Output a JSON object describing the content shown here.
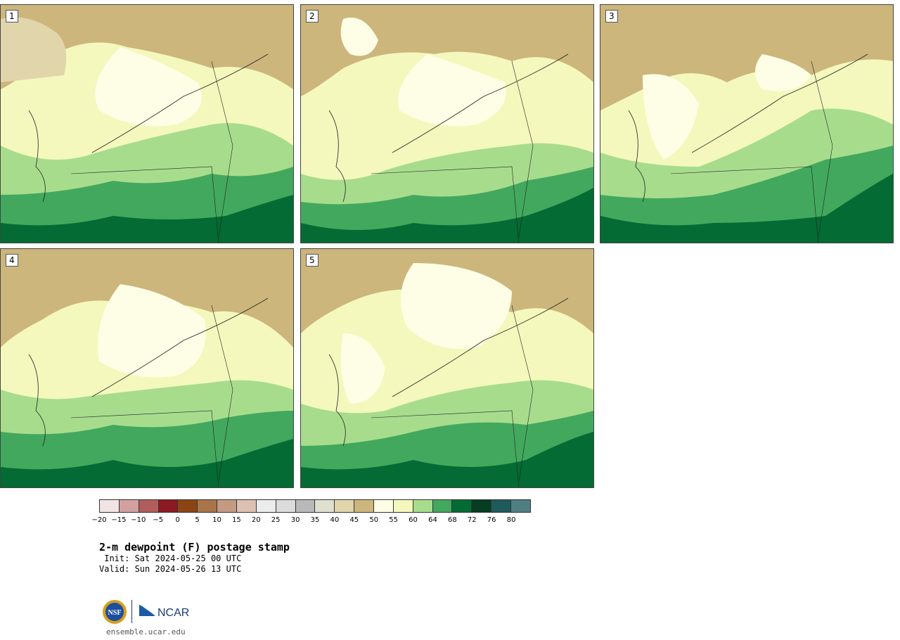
{
  "panels": [
    {
      "label": "1"
    },
    {
      "label": "2"
    },
    {
      "label": "3"
    },
    {
      "label": "4"
    },
    {
      "label": "5"
    }
  ],
  "colorbar": {
    "colors": [
      "#f2e4e4",
      "#d3a0a0",
      "#b25d5d",
      "#8b1a22",
      "#8b4513",
      "#aa7449",
      "#c49a82",
      "#dcc1b3",
      "#ececec",
      "#dcdcdc",
      "#b9b9b9",
      "#e0e0d1",
      "#e1d5ac",
      "#ccb67c",
      "#fefee6",
      "#f4f8bd",
      "#a8dc8d",
      "#42a85d",
      "#036b33",
      "#053d22",
      "#1f5a5d",
      "#4f7f83"
    ],
    "ticks": [
      "−20",
      "−15",
      "−10",
      "−5",
      "0",
      "5",
      "10",
      "15",
      "20",
      "25",
      "30",
      "35",
      "40",
      "45",
      "50",
      "55",
      "60",
      "64",
      "68",
      "72",
      "76",
      "80"
    ]
  },
  "title": "2-m dewpoint (F) postage stamp",
  "init": " Init: Sat 2024-05-25 00 UTC",
  "valid": "Valid: Sun 2024-05-26 13 UTC",
  "logos": {
    "nsf_text": "NSF",
    "ncar_text": "NCAR"
  },
  "site": "ensemble.ucar.edu"
}
